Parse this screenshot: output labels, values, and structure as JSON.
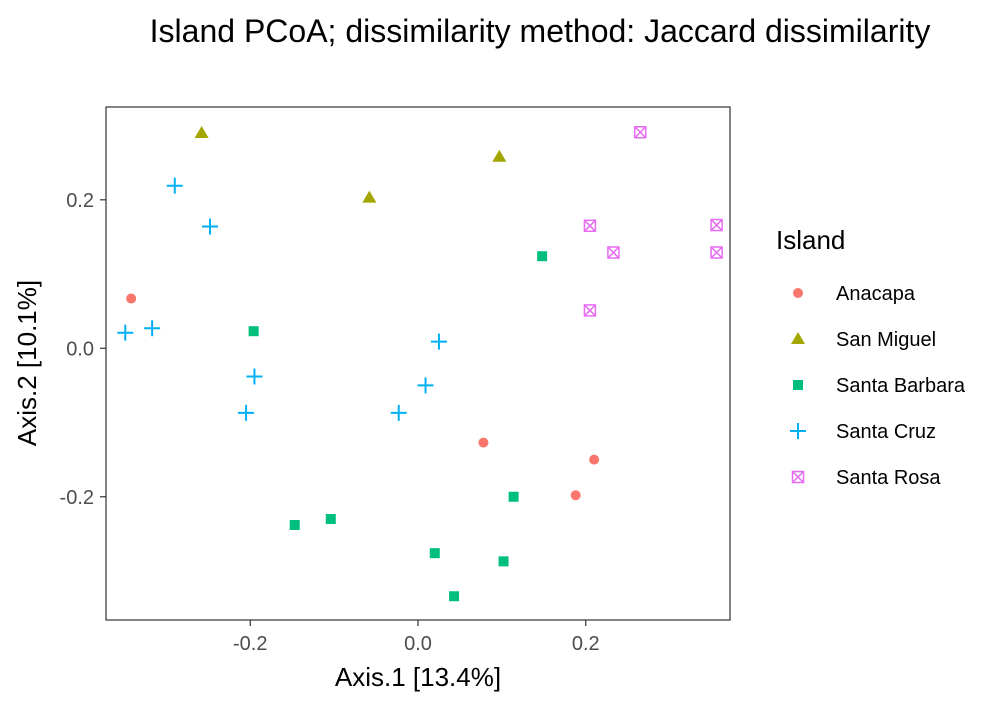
{
  "chart_data": {
    "type": "scatter",
    "title": "Island PCoA; dissimilarity method: Jaccard dissimilarity",
    "xlabel": "Axis.1   [13.4%]",
    "ylabel": "Axis.2   [10.1%]",
    "xlim": [
      -0.372,
      0.372
    ],
    "ylim": [
      -0.366,
      0.325
    ],
    "xticks": [
      -0.2,
      0.0,
      0.2
    ],
    "xtick_labels": [
      "-0.2",
      "0.0",
      "0.2"
    ],
    "yticks": [
      -0.2,
      0.0,
      0.2
    ],
    "ytick_labels": [
      "-0.2",
      "0.0",
      "0.2"
    ],
    "grid": false,
    "legend": {
      "title": "Island",
      "position": "right"
    },
    "series": [
      {
        "name": "Anacapa",
        "color": "#F8766D",
        "shape": "circle",
        "points": [
          [
            -0.342,
            0.067
          ],
          [
            0.078,
            -0.127
          ],
          [
            0.188,
            -0.198
          ],
          [
            0.21,
            -0.15
          ]
        ]
      },
      {
        "name": "San Miguel",
        "color": "#A3A500",
        "shape": "triangle",
        "points": [
          [
            -0.258,
            0.29
          ],
          [
            -0.058,
            0.203
          ],
          [
            0.097,
            0.258
          ]
        ]
      },
      {
        "name": "Santa Barbara",
        "color": "#00BF7D",
        "shape": "square",
        "points": [
          [
            0.148,
            0.124
          ],
          [
            -0.196,
            0.023
          ],
          [
            0.114,
            -0.2
          ],
          [
            -0.147,
            -0.238
          ],
          [
            -0.104,
            -0.23
          ],
          [
            0.02,
            -0.276
          ],
          [
            0.102,
            -0.287
          ],
          [
            0.043,
            -0.334
          ]
        ]
      },
      {
        "name": "Santa Cruz",
        "color": "#00B0F6",
        "shape": "plus",
        "points": [
          [
            -0.29,
            0.219
          ],
          [
            -0.248,
            0.164
          ],
          [
            -0.349,
            0.021
          ],
          [
            -0.317,
            0.027
          ],
          [
            -0.195,
            -0.038
          ],
          [
            -0.205,
            -0.087
          ],
          [
            0.025,
            0.009
          ],
          [
            0.009,
            -0.05
          ],
          [
            -0.023,
            -0.087
          ]
        ]
      },
      {
        "name": "Santa Rosa",
        "color": "#E76BF3",
        "shape": "square-x",
        "points": [
          [
            0.265,
            0.291
          ],
          [
            0.205,
            0.165
          ],
          [
            0.233,
            0.129
          ],
          [
            0.356,
            0.166
          ],
          [
            0.356,
            0.129
          ],
          [
            0.205,
            0.051
          ]
        ]
      }
    ]
  }
}
